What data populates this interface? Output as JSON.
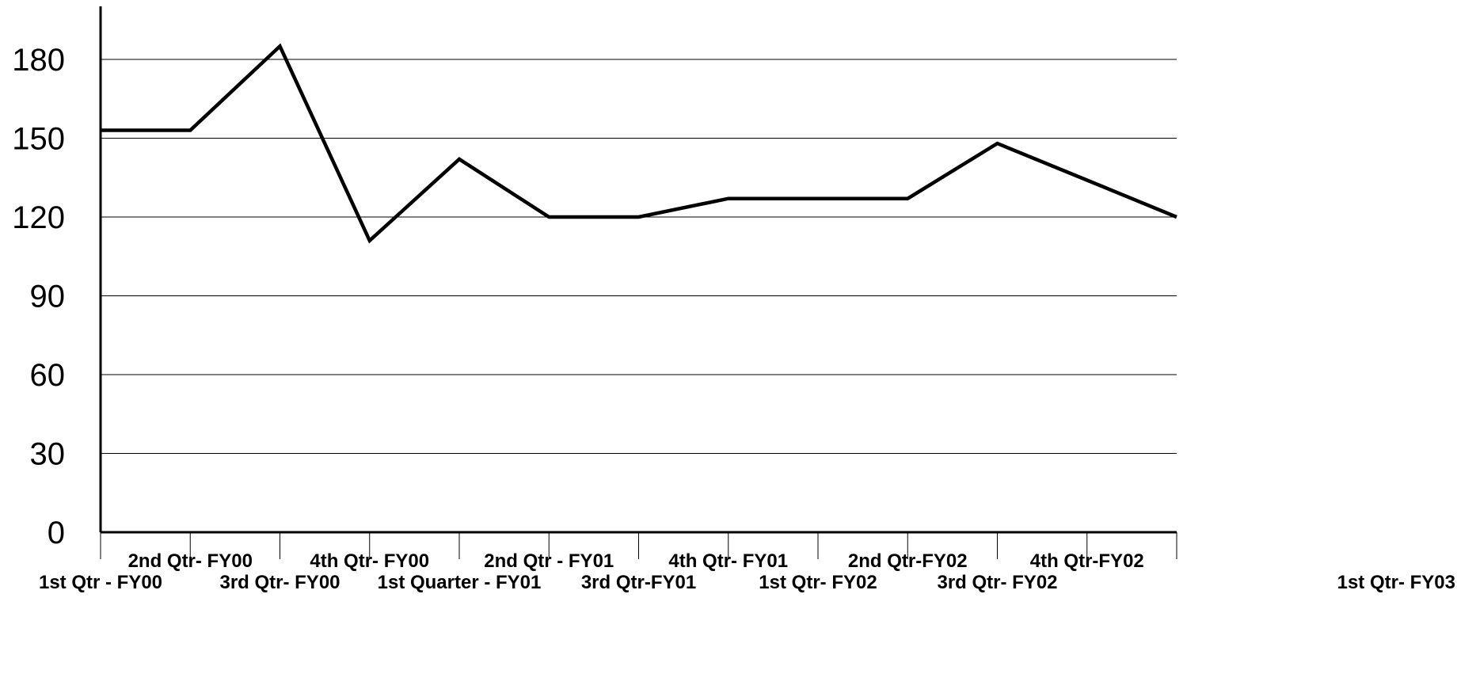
{
  "chart_data": {
    "type": "line",
    "title": "",
    "xlabel": "",
    "ylabel": "",
    "categories": [
      "1st Qtr - FY00",
      "2nd Qtr- FY00",
      "3rd Qtr- FY00",
      "4th Qtr- FY00",
      "1st Quarter - FY01",
      "2nd Qtr - FY01",
      "3rd Qtr-FY01",
      "4th Qtr- FY01",
      "1st Qtr- FY02",
      "2nd Qtr-FY02",
      "3rd Qtr- FY02",
      "4th Qtr-FY02",
      "1st Qtr- FY03"
    ],
    "series": [
      {
        "values": [
          153,
          153,
          185,
          111,
          142,
          120,
          120,
          127,
          127,
          127,
          148,
          134,
          120
        ]
      }
    ],
    "ylim": [
      0,
      195
    ],
    "yticks": [
      0,
      30,
      60,
      90,
      120,
      150,
      180
    ],
    "ytick_labels": [
      "0",
      "30",
      "60",
      "90",
      "120",
      "150",
      "180"
    ],
    "grid": "horizontal",
    "legend": "none",
    "colors": {
      "line": "#000000",
      "axis": "#000000",
      "grid": "#000000",
      "background": "#ffffff"
    }
  }
}
